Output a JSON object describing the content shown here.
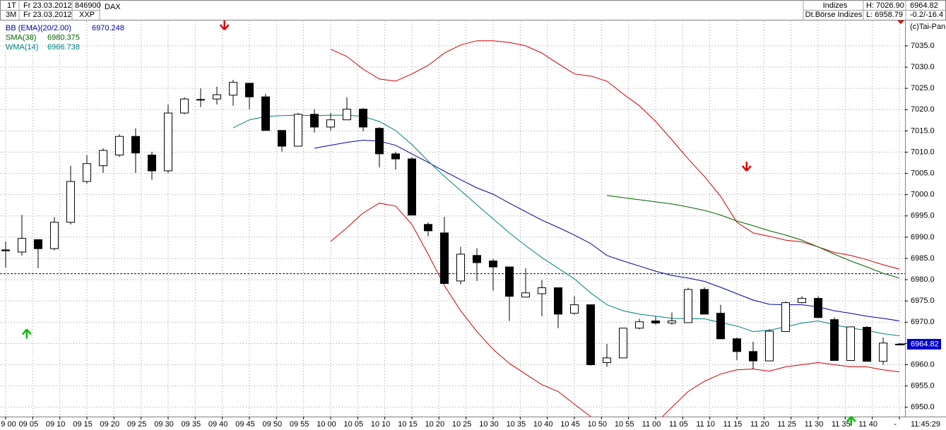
{
  "header": {
    "left": [
      [
        "1T",
        "Fr 23.03.2012",
        "846900",
        "DAX"
      ],
      [
        "3M",
        "Fr 23.03.2012",
        "XXP"
      ]
    ],
    "right": [
      [
        "Indizes",
        "H: 7026.90",
        "6964.82"
      ],
      [
        "Dt.Börse Indizes",
        "L: 6958.79",
        "-0.2/-16.4"
      ]
    ],
    "copyright": "(c)Tai-Pan"
  },
  "chart_data": {
    "type": "candlestick",
    "x": [
      0,
      3,
      6,
      9,
      12,
      15,
      18,
      21,
      24,
      27,
      30,
      33,
      36,
      39,
      42,
      45,
      48,
      51,
      54,
      57,
      60,
      63,
      66,
      69,
      72,
      75,
      78,
      81,
      84,
      87,
      90,
      93,
      96,
      99,
      102,
      105,
      108,
      111,
      114,
      117,
      120,
      123,
      126,
      129,
      132,
      135,
      138,
      141,
      144,
      147,
      150,
      153,
      156,
      159,
      162,
      165
    ],
    "open": [
      6987.0,
      6986.5,
      6989.4,
      6987.3,
      6993.5,
      7003.1,
      7006.8,
      7009.3,
      7013.7,
      7009.3,
      7005.6,
      7019.2,
      7022.3,
      7022.5,
      7023.4,
      7026.2,
      7023.0,
      7015.1,
      7011.4,
      7018.9,
      7015.9,
      7017.6,
      7020.1,
      7015.6,
      7009.6,
      7008.4,
      6993.0,
      6991.0,
      6979.7,
      6985.7,
      6984.4,
      6983.0,
      6975.9,
      6976.7,
      6978.1,
      6972.1,
      6974.1,
      6960.5,
      6961.6,
      6968.6,
      6970.3,
      6969.8,
      6969.9,
      6977.7,
      6972.1,
      6966.1,
      6963.1,
      6960.9,
      6967.8,
      6974.6,
      6975.6,
      6970.6,
      6961.0,
      6968.8,
      6960.8,
      6964.8
    ],
    "high": [
      6989.0,
      6995.2,
      6989.5,
      6994.7,
      7006.8,
      7009.3,
      7010.9,
      7014.2,
      7015.6,
      7010.1,
      7021.2,
      7022.9,
      7025.0,
      7025.4,
      7027.0,
      7026.2,
      7023.7,
      7015.1,
      7019.2,
      7020.1,
      7019.2,
      7022.9,
      7020.4,
      7015.9,
      7010.1,
      7008.8,
      6993.5,
      6994.8,
      6987.7,
      6987.4,
      6984.9,
      6983.0,
      6982.7,
      6979.9,
      6978.1,
      6976.1,
      6974.1,
      6964.9,
      6968.6,
      6970.8,
      6971.3,
      6972.3,
      6978.1,
      6978.2,
      6974.1,
      6966.4,
      6965.4,
      6968.3,
      6974.9,
      6976.1,
      6976.1,
      6971.1,
      6968.9,
      6969.1,
      6966.4,
      6965.1
    ],
    "low": [
      6982.8,
      6985.7,
      6982.7,
      6986.9,
      6993.0,
      7002.6,
      7005.1,
      7008.9,
      7005.1,
      7003.5,
      7005.1,
      7018.9,
      7020.6,
      7021.2,
      7020.9,
      7020.1,
      7015.1,
      7010.1,
      7011.4,
      7014.6,
      7015.1,
      7017.6,
      7014.9,
      7006.4,
      7005.9,
      6995.2,
      6990.2,
      6979.1,
      6978.9,
      6979.7,
      6977.4,
      6970.3,
      6975.9,
      6971.4,
      6968.6,
      6971.8,
      6959.8,
      6959.5,
      6961.6,
      6968.3,
      6969.4,
      6969.4,
      6969.9,
      6971.9,
      6966.1,
      6961.1,
      6959.0,
      6960.9,
      6967.8,
      6974.4,
      6970.9,
      6961.0,
      6961.0,
      6960.8,
      6960.0,
      6964.6
    ],
    "close": [
      6986.8,
      6989.7,
      6987.3,
      6993.5,
      7003.1,
      7007.3,
      7010.4,
      7013.7,
      7009.8,
      7005.6,
      7019.2,
      7022.5,
      7022.4,
      7023.5,
      7026.4,
      7023.0,
      7015.1,
      7011.4,
      7018.9,
      7015.9,
      7017.6,
      7020.1,
      7015.9,
      7009.6,
      7008.4,
      6995.2,
      6991.5,
      6979.1,
      6986.0,
      6984.0,
      6983.0,
      6976.1,
      6976.9,
      6978.1,
      6971.9,
      6974.1,
      6960.0,
      6961.6,
      6968.6,
      6970.1,
      6969.8,
      6970.3,
      6977.7,
      6971.9,
      6966.1,
      6963.1,
      6960.9,
      6967.9,
      6974.6,
      6975.6,
      6971.1,
      6961.0,
      6968.9,
      6960.8,
      6965.1,
      6964.82
    ],
    "up_color": "#ffffff",
    "down_color": "#000000",
    "series": [
      {
        "name": "BB (EMA)(20/2.00)",
        "color": "#0000a0",
        "legend_value": 6970.248,
        "band_color": "#d00000",
        "values": [
          null,
          null,
          null,
          null,
          null,
          null,
          null,
          null,
          null,
          null,
          null,
          null,
          null,
          null,
          null,
          null,
          null,
          null,
          null,
          7010.9,
          7011.6,
          7012.3,
          7012.8,
          7012.6,
          7011.6,
          7009.6,
          7007.6,
          7005.5,
          7003.5,
          7001.6,
          7000.1,
          6998.0,
          6996.0,
          6994.0,
          6992.3,
          6990.5,
          6988.5,
          6985.7,
          6984.4,
          6983.2,
          6982.0,
          6981.0,
          6980.4,
          6979.6,
          6978.2,
          6976.7,
          6975.2,
          6974.2,
          6974.1,
          6974.1,
          6973.6,
          6972.7,
          6972.1,
          6971.4,
          6970.9,
          6970.3
        ],
        "upper": [
          null,
          null,
          null,
          null,
          null,
          null,
          null,
          null,
          null,
          null,
          null,
          null,
          null,
          null,
          null,
          null,
          null,
          null,
          null,
          null,
          7034.2,
          7032.5,
          7029.5,
          7027.2,
          7026.7,
          7028.4,
          7030.4,
          7033.3,
          7035.2,
          7036.2,
          7036.2,
          7035.8,
          7035.0,
          7033.3,
          7030.8,
          7028.4,
          7027.9,
          7026.7,
          7023.7,
          7020.9,
          7017.2,
          7012.9,
          7008.4,
          7004.3,
          6999.6,
          6993.5,
          6991.0,
          6990.2,
          6989.3,
          6988.9,
          6987.7,
          6986.4,
          6985.7,
          6984.7,
          6983.5,
          6982.5
        ],
        "lower": [
          null,
          null,
          null,
          null,
          null,
          null,
          null,
          null,
          null,
          null,
          null,
          null,
          null,
          null,
          null,
          null,
          null,
          null,
          null,
          null,
          6989.0,
          6992.2,
          6995.7,
          6998.0,
          6997.3,
          6993.0,
          6986.0,
          6978.6,
          6972.7,
          6967.8,
          6963.6,
          6960.3,
          6957.8,
          6955.3,
          6953.7,
          6950.7,
          6947.8,
          6945.4,
          6944.0,
          6944.0,
          6946.2,
          6950.0,
          6953.7,
          6956.1,
          6957.8,
          6958.8,
          6959.0,
          6958.5,
          6959.5,
          6960.0,
          6960.5,
          6960.0,
          6959.5,
          6959.5,
          6958.8,
          6958.3
        ]
      },
      {
        "name": "SMA(38)",
        "color": "#006400",
        "legend_value": 6980.375,
        "values": [
          null,
          null,
          null,
          null,
          null,
          null,
          null,
          null,
          null,
          null,
          null,
          null,
          null,
          null,
          null,
          null,
          null,
          null,
          null,
          null,
          null,
          null,
          null,
          null,
          null,
          null,
          null,
          null,
          null,
          null,
          null,
          null,
          null,
          null,
          null,
          null,
          null,
          6999.8,
          6999.3,
          6998.8,
          6998.3,
          6997.8,
          6997.1,
          6996.3,
          6995.2,
          6993.8,
          6992.7,
          6991.5,
          6990.5,
          6989.3,
          6987.7,
          6986.0,
          6984.4,
          6983.0,
          6981.5,
          6980.4
        ]
      },
      {
        "name": "WMA(14)",
        "color": "#008080",
        "legend_value": 6966.738,
        "values": [
          null,
          null,
          null,
          null,
          null,
          null,
          null,
          null,
          null,
          null,
          null,
          null,
          null,
          null,
          7015.7,
          7017.6,
          7018.4,
          7018.6,
          7018.7,
          7018.6,
          7018.7,
          7018.7,
          7018.4,
          7017.2,
          7015.1,
          7011.8,
          7007.9,
          7004.3,
          7001.0,
          6997.6,
          6994.3,
          6991.0,
          6988.0,
          6985.2,
          6982.7,
          6980.2,
          6976.9,
          6974.1,
          6972.7,
          6971.9,
          6971.4,
          6970.9,
          6970.8,
          6970.8,
          6969.9,
          6969.1,
          6967.8,
          6968.1,
          6968.9,
          6969.8,
          6970.3,
          6969.4,
          6968.6,
          6968.1,
          6967.3,
          6966.8
        ]
      }
    ],
    "reference_line": 6981.4,
    "reference_color": "#000080",
    "last_price": 6964.82,
    "last_price_color": "#0000cc",
    "sell_signals": {
      "x": [
        40.4,
        136.8
      ],
      "values": [
        7038.8,
        7005.6
      ],
      "color": "#e00000"
    },
    "buy_signals": {
      "x": [
        3.9,
        156.1
      ],
      "values": [
        6968.3,
        6947.8
      ],
      "color": "#00c000"
    },
    "xlim": [
      -1.04,
      166.04
    ],
    "ylim": [
      6947.8,
      7040.8
    ],
    "xticks": [
      {
        "value": 0,
        "label": "9 00"
      },
      {
        "value": 5,
        "label": "09 05"
      },
      {
        "value": 10,
        "label": "09 10"
      },
      {
        "value": 15,
        "label": "09 15"
      },
      {
        "value": 20,
        "label": "09 20"
      },
      {
        "value": 25,
        "label": "09 25"
      },
      {
        "value": 30,
        "label": "09 30"
      },
      {
        "value": 35,
        "label": "09 35"
      },
      {
        "value": 40,
        "label": "09 40"
      },
      {
        "value": 45,
        "label": "09 45"
      },
      {
        "value": 50,
        "label": "09 50"
      },
      {
        "value": 55,
        "label": "09 55"
      },
      {
        "value": 60,
        "label": "10 00"
      },
      {
        "value": 65,
        "label": "10 05"
      },
      {
        "value": 70,
        "label": "10 10"
      },
      {
        "value": 75,
        "label": "10 15"
      },
      {
        "value": 80,
        "label": "10 20"
      },
      {
        "value": 85,
        "label": "10 25"
      },
      {
        "value": 90,
        "label": "10 30"
      },
      {
        "value": 95,
        "label": "10 35"
      },
      {
        "value": 100,
        "label": "10 40"
      },
      {
        "value": 105,
        "label": "10 45"
      },
      {
        "value": 110,
        "label": "10 50"
      },
      {
        "value": 115,
        "label": "10 55"
      },
      {
        "value": 120,
        "label": "11 00"
      },
      {
        "value": 125,
        "label": "11 05"
      },
      {
        "value": 130,
        "label": "11 10"
      },
      {
        "value": 135,
        "label": "11 15"
      },
      {
        "value": 140,
        "label": "11 20"
      },
      {
        "value": 145,
        "label": "11 25"
      },
      {
        "value": 150,
        "label": "11 30"
      },
      {
        "value": 155,
        "label": "11 35"
      },
      {
        "value": 160,
        "label": "11 40"
      },
      {
        "value": 165,
        "label": "-"
      }
    ],
    "current_time": "11:45:29",
    "yticks": [
      {
        "value": 6950,
        "label": "6950.0"
      },
      {
        "value": 6955,
        "label": "6955.0"
      },
      {
        "value": 6960,
        "label": "6960.0"
      },
      {
        "value": 6965,
        "label": "6965.0"
      },
      {
        "value": 6970,
        "label": "6970.0"
      },
      {
        "value": 6975,
        "label": "6975.0"
      },
      {
        "value": 6980,
        "label": "6980.0"
      },
      {
        "value": 6985,
        "label": "6985.0"
      },
      {
        "value": 6990,
        "label": "6990.0"
      },
      {
        "value": 6995,
        "label": "6995.0"
      },
      {
        "value": 7000,
        "label": "7000.0"
      },
      {
        "value": 7005,
        "label": "7005.0"
      },
      {
        "value": 7010,
        "label": "7010.0"
      },
      {
        "value": 7015,
        "label": "7015.0"
      },
      {
        "value": 7020,
        "label": "7020.0"
      },
      {
        "value": 7025,
        "label": "7025.0"
      },
      {
        "value": 7030,
        "label": "7030.0"
      },
      {
        "value": 7035,
        "label": "7035.0"
      }
    ],
    "grid": true
  }
}
